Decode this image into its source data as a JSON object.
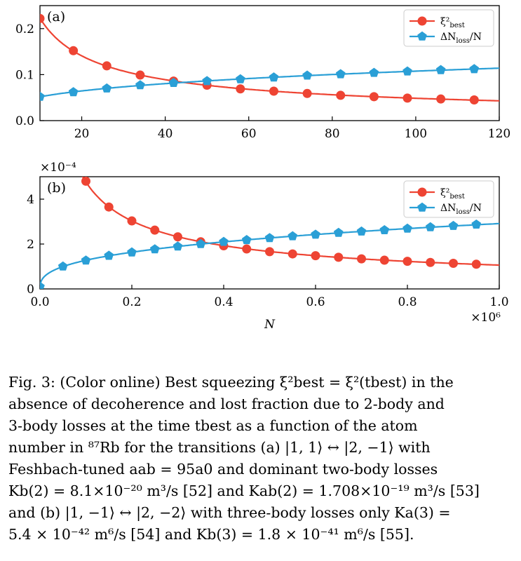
{
  "chart_data": [
    {
      "type": "line",
      "panel_label": "(a)",
      "xlabel": "",
      "ylabel": "",
      "xlim": [
        10,
        120
      ],
      "ylim": [
        0,
        0.25
      ],
      "xticks": [
        20,
        40,
        60,
        80,
        100,
        120
      ],
      "yticks": [
        0.0,
        0.1,
        0.2
      ],
      "ytick_labels": [
        "0.0",
        "0.1",
        "0.2"
      ],
      "legend_position": "top-right",
      "series": [
        {
          "name": "ξ²best",
          "color": "#ee4433",
          "marker": "circle",
          "x": [
            10,
            18,
            26,
            34,
            42,
            50,
            58,
            66,
            74,
            82,
            90,
            98,
            106,
            114
          ],
          "y": [
            0.222,
            0.152,
            0.119,
            0.099,
            0.086,
            0.077,
            0.069,
            0.064,
            0.059,
            0.055,
            0.052,
            0.049,
            0.047,
            0.045
          ]
        },
        {
          "name": "ΔNloss/N",
          "color": "#2a9fd6",
          "marker": "pentagon",
          "x": [
            10,
            18,
            26,
            34,
            42,
            50,
            58,
            66,
            74,
            82,
            90,
            98,
            106,
            114
          ],
          "y": [
            0.052,
            0.062,
            0.07,
            0.077,
            0.082,
            0.086,
            0.09,
            0.094,
            0.098,
            0.101,
            0.104,
            0.107,
            0.11,
            0.112
          ]
        }
      ]
    },
    {
      "type": "line",
      "panel_label": "(b)",
      "xlabel": "N",
      "ylabel": "",
      "x_multiplier": "×10⁶",
      "y_multiplier": "×10⁻⁴",
      "xlim": [
        0,
        1.0
      ],
      "ylim": [
        0,
        5
      ],
      "xticks": [
        0.0,
        0.2,
        0.4,
        0.6,
        0.8,
        1.0
      ],
      "xtick_labels": [
        "0.0",
        "0.2",
        "0.4",
        "0.6",
        "0.8",
        "1.0"
      ],
      "yticks": [
        0,
        2,
        4
      ],
      "ytick_labels": [
        "0",
        "2",
        "4"
      ],
      "legend_position": "top-right",
      "series": [
        {
          "name": "ξ²best",
          "color": "#ee4433",
          "marker": "circle",
          "x": [
            0.1,
            0.15,
            0.2,
            0.25,
            0.3,
            0.35,
            0.4,
            0.45,
            0.5,
            0.55,
            0.6,
            0.65,
            0.7,
            0.75,
            0.8,
            0.85,
            0.9,
            0.95
          ],
          "y": [
            4.8,
            3.65,
            3.03,
            2.62,
            2.32,
            2.1,
            1.92,
            1.78,
            1.66,
            1.56,
            1.48,
            1.41,
            1.34,
            1.28,
            1.23,
            1.18,
            1.14,
            1.1
          ]
        },
        {
          "name": "ΔNloss/N",
          "color": "#2a9fd6",
          "marker": "pentagon",
          "x": [
            0.0,
            0.05,
            0.1,
            0.15,
            0.2,
            0.25,
            0.3,
            0.35,
            0.4,
            0.45,
            0.5,
            0.55,
            0.6,
            0.65,
            0.7,
            0.75,
            0.8,
            0.85,
            0.9,
            0.95
          ],
          "y": [
            0.1,
            1.0,
            1.27,
            1.48,
            1.63,
            1.77,
            1.89,
            2.0,
            2.1,
            2.18,
            2.27,
            2.35,
            2.42,
            2.5,
            2.56,
            2.62,
            2.69,
            2.75,
            2.81,
            2.87
          ]
        }
      ]
    }
  ],
  "caption": {
    "line1": "Fig. 3: (Color online) Best squeezing ξ²best = ξ²(tbest) in the",
    "line2": "absence of decoherence and lost fraction due to 2-body and",
    "line3": "3-body losses at the time tbest as a function of the atom",
    "line4": "number in ⁸⁷Rb for the transitions (a) |1, 1⟩ ↔ |2, −1⟩ with",
    "line5": "Feshbach-tuned aab = 95a0 and dominant two-body losses",
    "line6": "Kb(2) = 8.1×10⁻²⁰ m³/s [52] and Kab(2) = 1.708×10⁻¹⁹ m³/s [53]",
    "line7": "and (b) |1, −1⟩ ↔ |2, −2⟩ with three-body losses only Ka(3) =",
    "line8": "5.4 × 10⁻⁴² m⁶/s [54] and Kb(3) = 1.8 × 10⁻⁴¹ m⁶/s [55]."
  }
}
